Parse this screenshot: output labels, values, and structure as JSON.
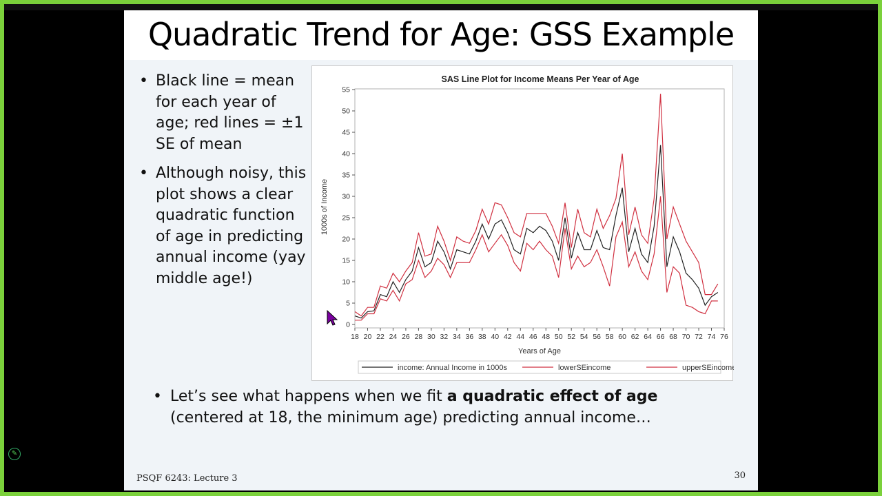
{
  "slide": {
    "title": "Quadratic Trend for Age: GSS Example",
    "bullets": [
      "Black line = mean for each year of age; red lines = ±1 SE of mean",
      "Although noisy, this plot shows a clear quadratic function of age in predicting annual income (yay middle age!)"
    ],
    "bottom_bullet": {
      "prefix": "Let’s see what happens when we fit ",
      "bold": "a quadratic effect of age",
      "suffix": " (centered at 18, the minimum age) predicting annual income…"
    },
    "footer_left": "PSQF 6243: Lecture 3",
    "page_number": "30"
  },
  "icons": {
    "cursor": "arrow-pointer-icon",
    "pen": "pen-icon"
  },
  "colors": {
    "mean_line": "#222222",
    "se_line": "#d03040",
    "frame": "#7bd13b"
  },
  "chart_data": {
    "type": "line",
    "title": "SAS Line Plot for Income Means Per Year of Age",
    "xlabel": "Years of Age",
    "ylabel": "1000s of Income",
    "xlim": [
      18,
      76
    ],
    "ylim": [
      0,
      55
    ],
    "xticks": [
      18,
      20,
      22,
      24,
      26,
      28,
      30,
      32,
      34,
      36,
      38,
      40,
      42,
      44,
      46,
      48,
      50,
      52,
      54,
      56,
      58,
      60,
      62,
      64,
      66,
      68,
      70,
      72,
      74,
      76
    ],
    "yticks": [
      0,
      5,
      10,
      15,
      20,
      25,
      30,
      35,
      40,
      45,
      50,
      55
    ],
    "grid": false,
    "legend_position": "bottom",
    "x": [
      18,
      19,
      20,
      21,
      22,
      23,
      24,
      25,
      26,
      27,
      28,
      29,
      30,
      31,
      32,
      33,
      34,
      35,
      36,
      37,
      38,
      39,
      40,
      41,
      42,
      43,
      44,
      45,
      46,
      47,
      48,
      49,
      50,
      51,
      52,
      53,
      54,
      55,
      56,
      57,
      58,
      59,
      60,
      61,
      62,
      63,
      64,
      65,
      66,
      67,
      68,
      69,
      70,
      71,
      72,
      73,
      74,
      75
    ],
    "series": [
      {
        "name": "income: Annual Income in 1000s",
        "color": "#222222",
        "values": [
          2,
          1.5,
          3,
          3.2,
          7,
          6.5,
          10,
          7.5,
          10.5,
          12.5,
          18,
          13.5,
          14.5,
          19.5,
          17,
          13,
          17.5,
          17,
          16.5,
          19.5,
          23.5,
          20,
          23.5,
          24.5,
          21.5,
          17.5,
          16.5,
          22.5,
          21.5,
          23,
          22,
          19.5,
          15,
          25,
          15.5,
          21.5,
          17.5,
          17.5,
          22,
          18,
          17.5,
          25.5,
          32,
          17,
          22.5,
          16.5,
          14.5,
          23,
          42,
          13.5,
          20.5,
          17,
          12,
          10.5,
          8.5,
          4.5,
          6.5,
          7.5
        ]
      },
      {
        "name": "lowerSEincome",
        "color": "#d03040",
        "values": [
          1,
          1,
          2.5,
          2.5,
          6,
          5.5,
          8,
          5.5,
          9.5,
          10.5,
          15,
          11,
          12.5,
          15.5,
          14,
          11,
          14.5,
          14.5,
          14.5,
          17.5,
          21,
          17,
          19,
          21,
          18.5,
          14.5,
          12.5,
          19,
          17.5,
          19.5,
          17.5,
          16,
          11,
          22.5,
          13,
          16,
          13.5,
          14.5,
          17.5,
          13.5,
          9,
          20.5,
          24,
          13.5,
          17,
          12.5,
          10.5,
          16.5,
          30,
          7.5,
          13.5,
          12,
          4.5,
          4,
          3,
          2.5,
          5.5,
          5.5
        ]
      },
      {
        "name": "upperSEincome",
        "color": "#d03040",
        "values": [
          3,
          2,
          4,
          4,
          9,
          8.5,
          12,
          10,
          12.5,
          14.5,
          21.5,
          16,
          16.5,
          23,
          19.5,
          15,
          20.5,
          19.5,
          19,
          22,
          27,
          23.5,
          28.5,
          28,
          25,
          21.5,
          20.5,
          26,
          26,
          26,
          26,
          23,
          19,
          28.5,
          18,
          27,
          21.5,
          20.5,
          27,
          22.5,
          25.5,
          29.5,
          40,
          21,
          27.5,
          21,
          19,
          29.5,
          54,
          20,
          27.5,
          23.5,
          19.5,
          17,
          14.5,
          7,
          7,
          9.5
        ]
      }
    ]
  }
}
